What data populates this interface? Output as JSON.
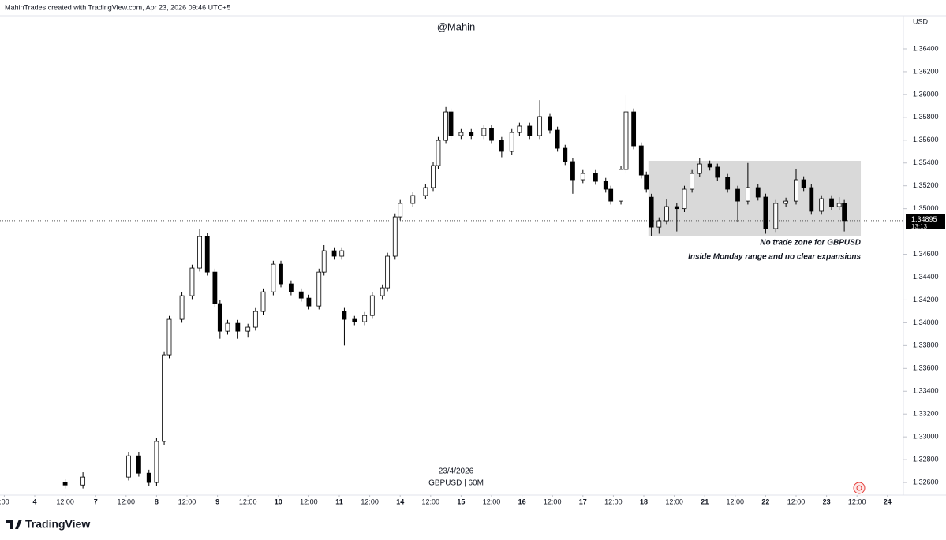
{
  "header": "MahinTrades created with TradingView.com, Apr 23, 2026 09:46 UTC+5",
  "logo": "TradingView",
  "chart_data": {
    "type": "candlestick",
    "title": "@Mahin",
    "currency": "USD",
    "date_label": "23/4/2026",
    "symbol_label": "GBPUSD | 60M",
    "up_color": "#ffffff",
    "down_color": "#000000",
    "xlim": [
      -13.68,
      342.28
    ],
    "ylim": [
      1.3249,
      1.3669
    ],
    "xticks": [
      {
        "value": -12,
        "label": ":00"
      },
      {
        "value": 0,
        "label": "4"
      },
      {
        "value": 12,
        "label": "12:00"
      },
      {
        "value": 24,
        "label": "7"
      },
      {
        "value": 36,
        "label": "12:00"
      },
      {
        "value": 48,
        "label": "8"
      },
      {
        "value": 60,
        "label": "12:00"
      },
      {
        "value": 72,
        "label": "9"
      },
      {
        "value": 84,
        "label": "12:00"
      },
      {
        "value": 96,
        "label": "10"
      },
      {
        "value": 108,
        "label": "12:00"
      },
      {
        "value": 120,
        "label": "11"
      },
      {
        "value": 132,
        "label": "12:00"
      },
      {
        "value": 144,
        "label": "14"
      },
      {
        "value": 156,
        "label": "12:00"
      },
      {
        "value": 168,
        "label": "15"
      },
      {
        "value": 180,
        "label": "12:00"
      },
      {
        "value": 192,
        "label": "16"
      },
      {
        "value": 204,
        "label": "12:00"
      },
      {
        "value": 216,
        "label": "17"
      },
      {
        "value": 228,
        "label": "12:00"
      },
      {
        "value": 240,
        "label": "18"
      },
      {
        "value": 252,
        "label": "12:00"
      },
      {
        "value": 264,
        "label": "21"
      },
      {
        "value": 276,
        "label": "12:00"
      },
      {
        "value": 288,
        "label": "22"
      },
      {
        "value": 300,
        "label": "12:00"
      },
      {
        "value": 312,
        "label": "23"
      },
      {
        "value": 324,
        "label": "12:00"
      },
      {
        "value": 336,
        "label": "24"
      }
    ],
    "yticks": [
      {
        "value": 1.326,
        "label": "1.32600"
      },
      {
        "value": 1.328,
        "label": "1.32800"
      },
      {
        "value": 1.33,
        "label": "1.33000"
      },
      {
        "value": 1.332,
        "label": "1.33200"
      },
      {
        "value": 1.334,
        "label": "1.33400"
      },
      {
        "value": 1.336,
        "label": "1.33600"
      },
      {
        "value": 1.338,
        "label": "1.33800"
      },
      {
        "value": 1.34,
        "label": "1.34000"
      },
      {
        "value": 1.342,
        "label": "1.34200"
      },
      {
        "value": 1.344,
        "label": "1.34400"
      },
      {
        "value": 1.346,
        "label": "1.34600"
      },
      {
        "value": 1.35,
        "label": "1.35000"
      },
      {
        "value": 1.352,
        "label": "1.35200"
      },
      {
        "value": 1.354,
        "label": "1.35400"
      },
      {
        "value": 1.356,
        "label": "1.35600"
      },
      {
        "value": 1.358,
        "label": "1.35800"
      },
      {
        "value": 1.36,
        "label": "1.36000"
      },
      {
        "value": 1.362,
        "label": "1.36200"
      },
      {
        "value": 1.364,
        "label": "1.36400"
      }
    ],
    "last_price": {
      "value": 1.34895,
      "label": "1.34895"
    },
    "countdown": "13:13",
    "zone": {
      "x": [
        241.8,
        325.5
      ],
      "y": [
        1.34756,
        1.35419
      ],
      "color": "#d9d9d9"
    },
    "annotations": [
      "No trade zone for GBPUSD",
      "Inside Monday range and no clear expansions"
    ],
    "x": [
      12,
      19,
      37,
      41,
      45,
      48,
      51,
      53,
      58,
      62,
      65,
      68,
      71,
      73,
      76,
      80,
      84,
      87,
      90,
      94,
      97,
      101,
      105,
      108,
      112,
      114,
      118,
      121,
      122,
      126,
      130,
      133,
      137,
      139,
      142,
      144,
      149,
      154,
      157,
      159,
      162,
      164,
      168,
      172,
      177,
      180,
      184,
      188,
      191,
      195,
      199,
      203,
      206,
      209,
      212,
      216,
      221,
      225,
      227,
      231,
      233,
      236,
      239,
      241,
      243,
      246,
      249,
      253,
      256,
      259,
      262,
      266,
      269,
      273,
      277,
      281,
      285,
      288,
      292,
      296,
      300,
      303,
      306,
      310,
      314,
      317,
      319
    ],
    "ohlc": [
      [
        1.326,
        1.3263,
        1.32548,
        1.32578
      ],
      [
        1.32578,
        1.3269,
        1.32548,
        1.32648
      ],
      [
        1.32648,
        1.32864,
        1.32618,
        1.32834
      ],
      [
        1.32834,
        1.32864,
        1.32652,
        1.32682
      ],
      [
        1.32682,
        1.32712,
        1.3257,
        1.326
      ],
      [
        1.326,
        1.3299,
        1.3257,
        1.3296
      ],
      [
        1.3296,
        1.33749,
        1.3293,
        1.33719
      ],
      [
        1.33719,
        1.3406,
        1.33689,
        1.3403
      ],
      [
        1.3403,
        1.34267,
        1.34,
        1.34237
      ],
      [
        1.34237,
        1.34509,
        1.34207,
        1.34479
      ],
      [
        1.34479,
        1.3482,
        1.34449,
        1.34755
      ],
      [
        1.34755,
        1.34785,
        1.34414,
        1.34444
      ],
      [
        1.34444,
        1.34474,
        1.34138,
        1.34168
      ],
      [
        1.34168,
        1.34198,
        1.3386,
        1.33926
      ],
      [
        1.33926,
        1.34025,
        1.33896,
        1.33995
      ],
      [
        1.33995,
        1.34025,
        1.3386,
        1.33926
      ],
      [
        1.33926,
        1.33991,
        1.3387,
        1.33961
      ],
      [
        1.33961,
        1.34129,
        1.33931,
        1.34099
      ],
      [
        1.34099,
        1.34301,
        1.34069,
        1.34271
      ],
      [
        1.34271,
        1.34543,
        1.34241,
        1.34513
      ],
      [
        1.34513,
        1.34543,
        1.34311,
        1.34341
      ],
      [
        1.34341,
        1.34371,
        1.34241,
        1.34271
      ],
      [
        1.34271,
        1.34301,
        1.34186,
        1.34216
      ],
      [
        1.34216,
        1.34246,
        1.34117,
        1.34147
      ],
      [
        1.34147,
        1.34474,
        1.34117,
        1.34444
      ],
      [
        1.34444,
        1.3468,
        1.34414,
        1.34631
      ],
      [
        1.34631,
        1.34661,
        1.34553,
        1.34583
      ],
      [
        1.34583,
        1.34661,
        1.34553,
        1.34631
      ],
      [
        1.341,
        1.3413,
        1.338,
        1.3403
      ],
      [
        1.3403,
        1.3406,
        1.33979,
        1.34009
      ],
      [
        1.34009,
        1.34094,
        1.33979,
        1.34064
      ],
      [
        1.34064,
        1.34267,
        1.34034,
        1.34237
      ],
      [
        1.34237,
        1.34336,
        1.34207,
        1.34306
      ],
      [
        1.34306,
        1.34613,
        1.34276,
        1.34583
      ],
      [
        1.34583,
        1.34958,
        1.34553,
        1.34928
      ],
      [
        1.34928,
        1.35076,
        1.34898,
        1.35046
      ],
      [
        1.35046,
        1.35145,
        1.35016,
        1.35115
      ],
      [
        1.35115,
        1.35214,
        1.35085,
        1.35184
      ],
      [
        1.35184,
        1.35407,
        1.35154,
        1.35377
      ],
      [
        1.35377,
        1.35628,
        1.35347,
        1.35598
      ],
      [
        1.35598,
        1.3589,
        1.35568,
        1.35847
      ],
      [
        1.35847,
        1.35877,
        1.3561,
        1.3564
      ],
      [
        1.3564,
        1.35697,
        1.3561,
        1.35667
      ],
      [
        1.35667,
        1.35697,
        1.3561,
        1.3564
      ],
      [
        1.3564,
        1.35732,
        1.3561,
        1.35702
      ],
      [
        1.35702,
        1.35732,
        1.35568,
        1.35598
      ],
      [
        1.35598,
        1.35628,
        1.3545,
        1.35502
      ],
      [
        1.35502,
        1.35697,
        1.35472,
        1.35667
      ],
      [
        1.35667,
        1.35753,
        1.35637,
        1.35723
      ],
      [
        1.35723,
        1.35753,
        1.3561,
        1.3564
      ],
      [
        1.3564,
        1.3595,
        1.3561,
        1.35806
      ],
      [
        1.35806,
        1.35836,
        1.35658,
        1.35688
      ],
      [
        1.35688,
        1.35718,
        1.35499,
        1.35529
      ],
      [
        1.35529,
        1.35559,
        1.35382,
        1.35412
      ],
      [
        1.35412,
        1.35442,
        1.3513,
        1.35253
      ],
      [
        1.35253,
        1.35338,
        1.35223,
        1.35308
      ],
      [
        1.35308,
        1.35338,
        1.35209,
        1.35239
      ],
      [
        1.35239,
        1.35269,
        1.3514,
        1.3517
      ],
      [
        1.3517,
        1.352,
        1.35036,
        1.35066
      ],
      [
        1.35066,
        1.35373,
        1.35036,
        1.35343
      ],
      [
        1.35343,
        1.35998,
        1.35313,
        1.35847
      ],
      [
        1.35847,
        1.35877,
        1.3552,
        1.3555
      ],
      [
        1.3555,
        1.3558,
        1.35264,
        1.35294
      ],
      [
        1.35294,
        1.35324,
        1.3514,
        1.3517
      ],
      [
        1.351,
        1.3513,
        1.3476,
        1.34838
      ],
      [
        1.34838,
        1.34924,
        1.3478,
        1.34894
      ],
      [
        1.34894,
        1.3508,
        1.34864,
        1.35018
      ],
      [
        1.35018,
        1.35048,
        1.348,
        1.35
      ],
      [
        1.35,
        1.352,
        1.3497,
        1.3517
      ],
      [
        1.3517,
        1.35338,
        1.3514,
        1.35308
      ],
      [
        1.35308,
        1.3544,
        1.35278,
        1.35391
      ],
      [
        1.35391,
        1.35421,
        1.35334,
        1.35364
      ],
      [
        1.35364,
        1.35394,
        1.35244,
        1.35274
      ],
      [
        1.35274,
        1.35304,
        1.3514,
        1.3517
      ],
      [
        1.3517,
        1.352,
        1.3488,
        1.35066
      ],
      [
        1.35066,
        1.354,
        1.35036,
        1.35184
      ],
      [
        1.35184,
        1.35214,
        1.35071,
        1.35101
      ],
      [
        1.35101,
        1.35131,
        1.3478,
        1.34825
      ],
      [
        1.34825,
        1.35076,
        1.34795,
        1.35046
      ],
      [
        1.35046,
        1.35096,
        1.35016,
        1.35066
      ],
      [
        1.35066,
        1.3535,
        1.35036,
        1.35253
      ],
      [
        1.35253,
        1.35283,
        1.35154,
        1.35184
      ],
      [
        1.35184,
        1.35214,
        1.34947,
        1.34977
      ],
      [
        1.34977,
        1.35117,
        1.34947,
        1.35087
      ],
      [
        1.35087,
        1.35117,
        1.34988,
        1.35018
      ],
      [
        1.35018,
        1.351,
        1.34988,
        1.35046
      ],
      [
        1.35046,
        1.35076,
        1.348,
        1.34895
      ]
    ]
  }
}
